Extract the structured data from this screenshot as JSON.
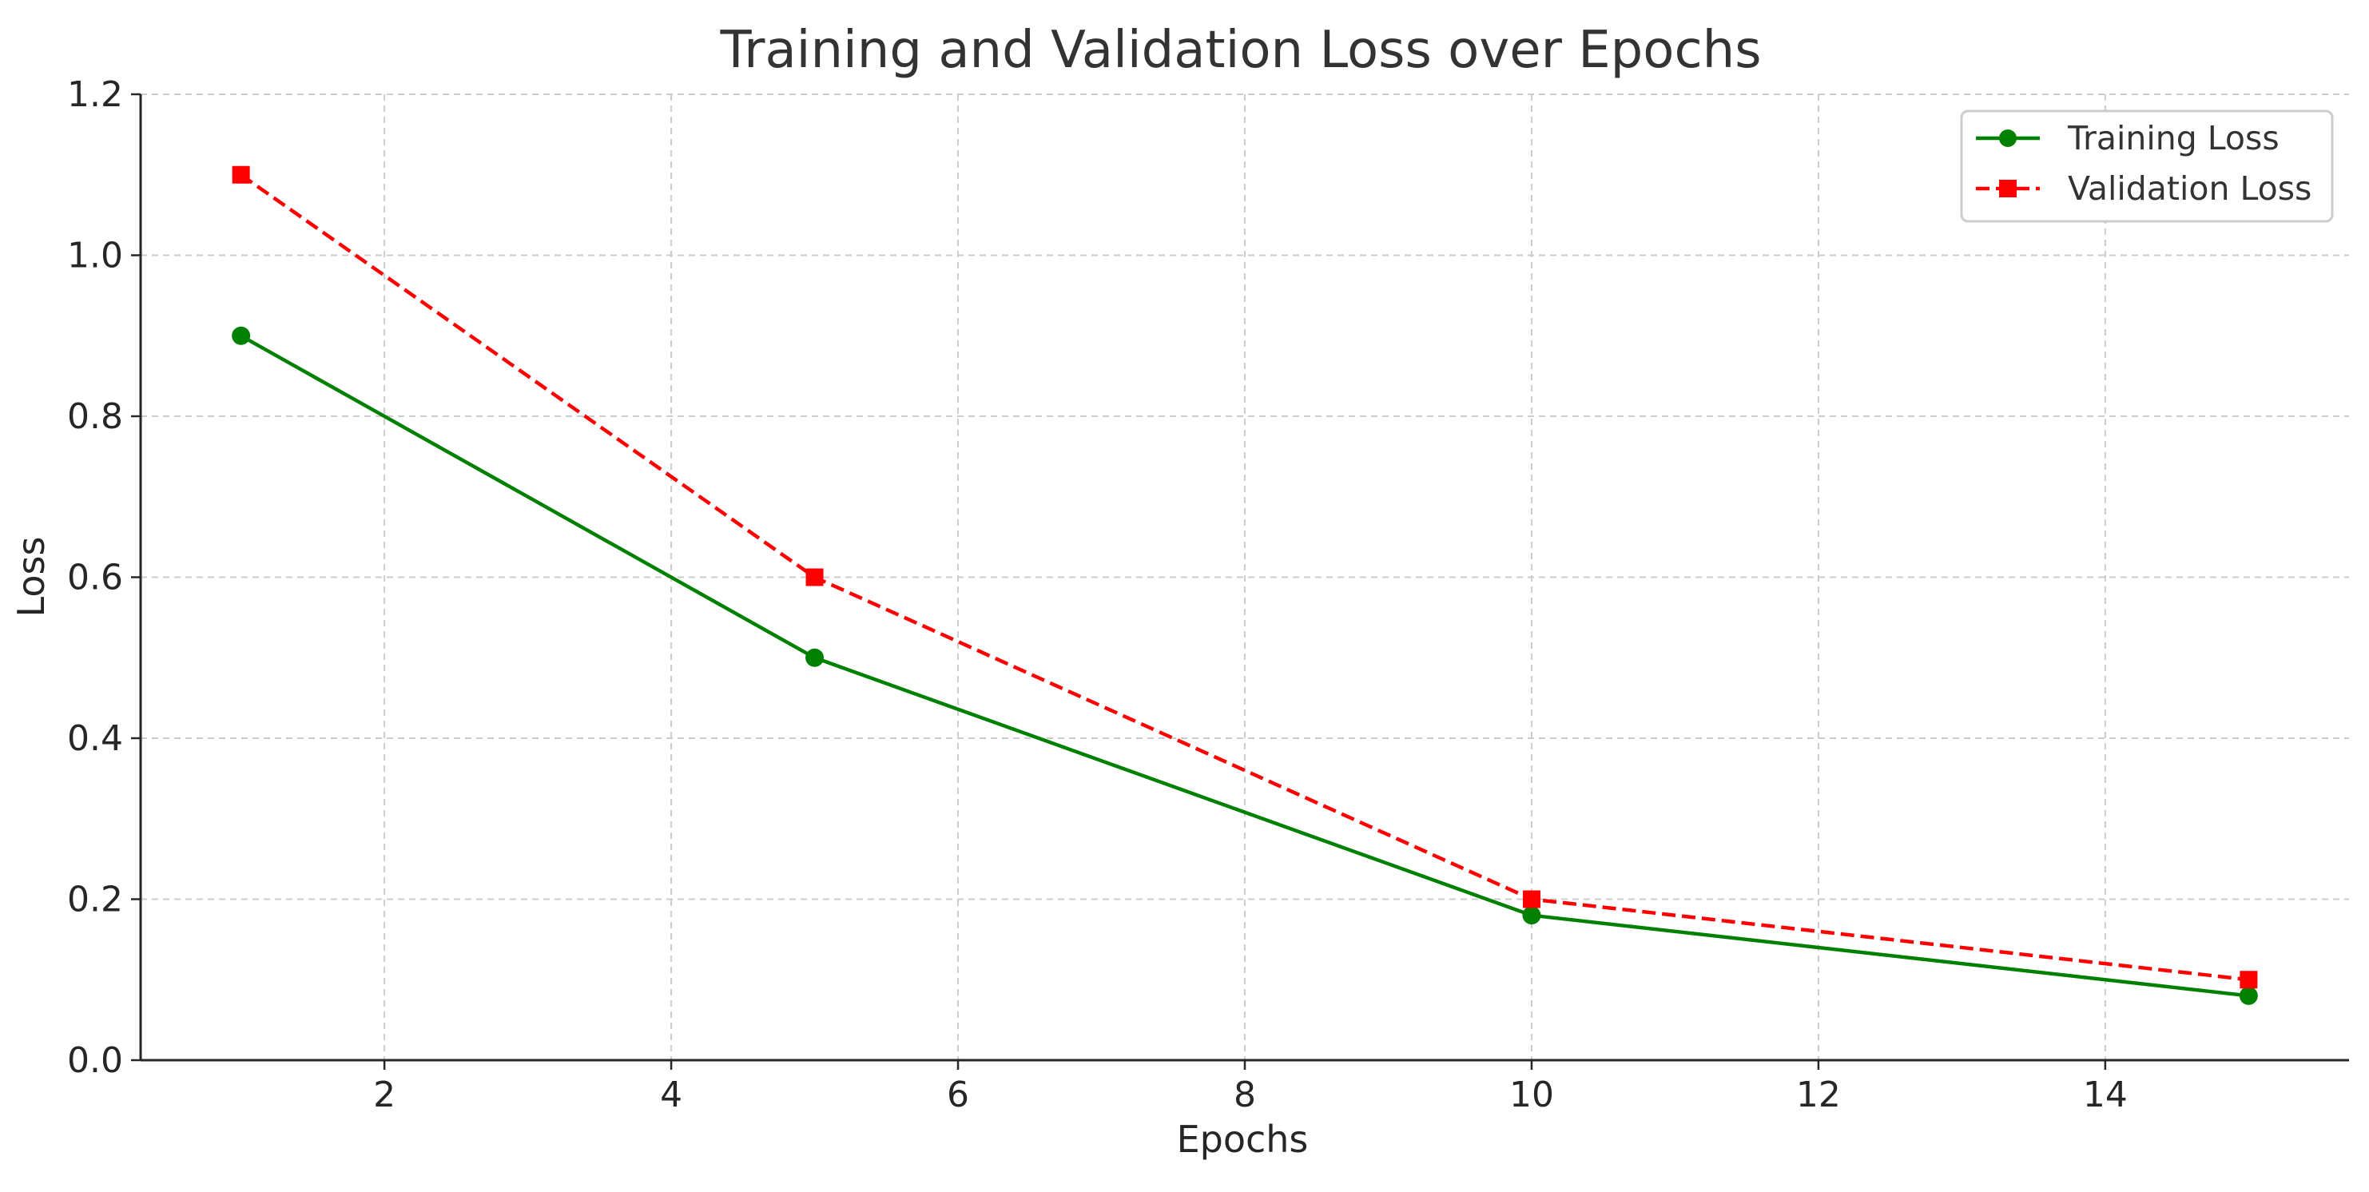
{
  "chart_data": {
    "type": "line",
    "title": "Training and Validation Loss over Epochs",
    "xlabel": "Epochs",
    "ylabel": "Loss",
    "xlim": [
      0.3,
      15.7
    ],
    "ylim": [
      0.0,
      1.2
    ],
    "xticks": [
      2,
      4,
      6,
      8,
      10,
      12,
      14
    ],
    "yticks": [
      0.0,
      0.2,
      0.4,
      0.6,
      0.8,
      1.0,
      1.2
    ],
    "grid": true,
    "legend_position": "top-right",
    "series": [
      {
        "name": "Training Loss",
        "color": "#008000",
        "line_style": "solid",
        "marker": "circle",
        "x": [
          1,
          5,
          10,
          15
        ],
        "y": [
          0.9,
          0.5,
          0.18,
          0.08
        ]
      },
      {
        "name": "Validation Loss",
        "color": "#ff0000",
        "line_style": "dashed",
        "marker": "square",
        "x": [
          1,
          5,
          10,
          15
        ],
        "y": [
          1.1,
          0.6,
          0.2,
          0.1
        ]
      }
    ]
  }
}
